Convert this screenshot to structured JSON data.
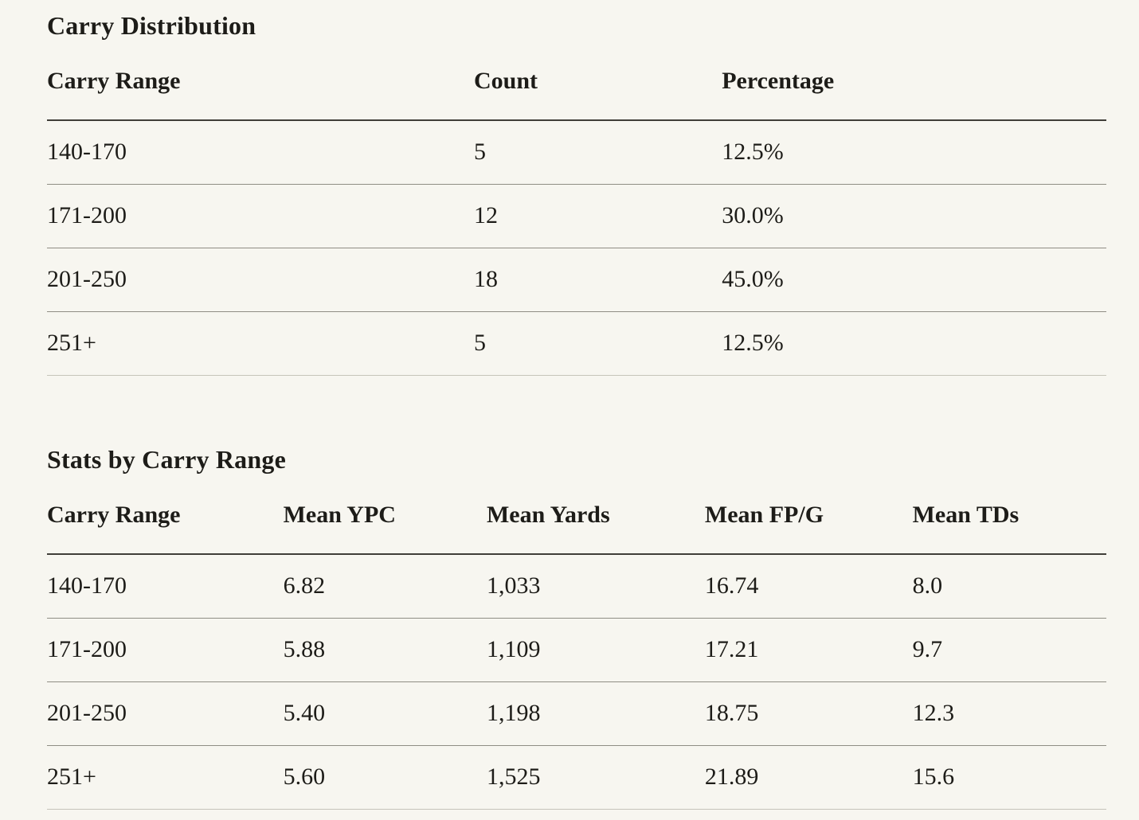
{
  "page": {
    "background_color": "#F7F6F0",
    "text_color": "#1D1C18",
    "header_rule_color": "#403E38",
    "row_divider_color": "#8F8D84",
    "bottom_rule_color": "#C6C4BA"
  },
  "tables": [
    {
      "title": "Carry Distribution",
      "columns": [
        "Carry Range",
        "Count",
        "Percentage"
      ],
      "col_widths": [
        "40.3%",
        "23.4%",
        "36.3%"
      ],
      "rows": [
        [
          "140-170",
          "5",
          "12.5%"
        ],
        [
          "171-200",
          "12",
          "30.0%"
        ],
        [
          "201-250",
          "18",
          "45.0%"
        ],
        [
          "251+",
          "5",
          "12.5%"
        ]
      ]
    },
    {
      "title": "Stats by Carry Range",
      "columns": [
        "Carry Range",
        "Mean YPC",
        "Mean Yards",
        "Mean FP/G",
        "Mean TDs"
      ],
      "col_widths": [
        "22.3%",
        "19.2%",
        "20.6%",
        "19.6%",
        "18.3%"
      ],
      "rows": [
        [
          "140-170",
          "6.82",
          "1,033",
          "16.74",
          "8.0"
        ],
        [
          "171-200",
          "5.88",
          "1,109",
          "17.21",
          "9.7"
        ],
        [
          "201-250",
          "5.40",
          "1,198",
          "18.75",
          "12.3"
        ],
        [
          "251+",
          "5.60",
          "1,525",
          "21.89",
          "15.6"
        ]
      ]
    }
  ]
}
